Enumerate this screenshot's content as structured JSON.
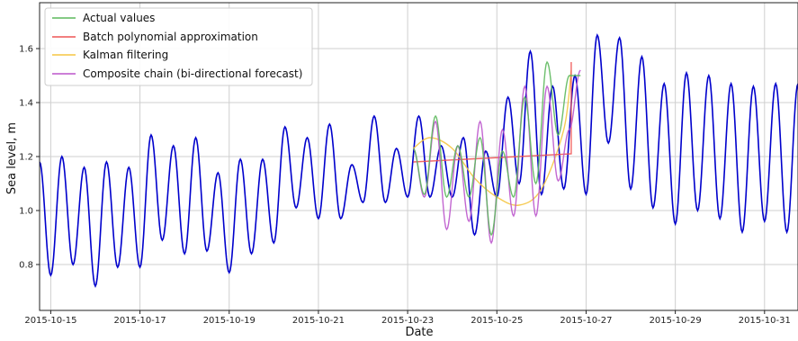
{
  "chart_data": {
    "type": "line",
    "xlabel": "Date",
    "ylabel": "Sea level, m",
    "xlim": [
      "2015-10-14T18:00",
      "2015-10-31T18:00"
    ],
    "ylim": [
      0.63,
      1.77
    ],
    "grid": true,
    "legend_position": "top-left",
    "x_ticks": [
      "2015-10-15",
      "2015-10-17",
      "2015-10-19",
      "2015-10-21",
      "2015-10-23",
      "2015-10-25",
      "2015-10-27",
      "2015-10-29",
      "2015-10-31"
    ],
    "y_ticks": [
      "0.8",
      "1.0",
      "1.2",
      "1.4",
      "1.6"
    ],
    "background_series": {
      "color": "#0000cc",
      "x": [
        "2015-10-14T18:00",
        "2015-10-15T00:00",
        "2015-10-15T06:00",
        "2015-10-15T12:00",
        "2015-10-15T18:00",
        "2015-10-16T00:00",
        "2015-10-16T06:00",
        "2015-10-16T12:00",
        "2015-10-16T18:00",
        "2015-10-17T00:00",
        "2015-10-17T06:00",
        "2015-10-17T12:00",
        "2015-10-17T18:00",
        "2015-10-18T00:00",
        "2015-10-18T06:00",
        "2015-10-18T12:00",
        "2015-10-18T18:00",
        "2015-10-19T00:00",
        "2015-10-19T06:00",
        "2015-10-19T12:00",
        "2015-10-19T18:00",
        "2015-10-20T00:00",
        "2015-10-20T06:00",
        "2015-10-20T12:00",
        "2015-10-20T18:00",
        "2015-10-21T00:00",
        "2015-10-21T06:00",
        "2015-10-21T12:00",
        "2015-10-21T18:00",
        "2015-10-22T00:00",
        "2015-10-22T06:00",
        "2015-10-22T12:00",
        "2015-10-22T18:00",
        "2015-10-23T00:00",
        "2015-10-23T06:00",
        "2015-10-23T12:00",
        "2015-10-23T18:00",
        "2015-10-24T00:00",
        "2015-10-24T06:00",
        "2015-10-24T12:00",
        "2015-10-24T18:00",
        "2015-10-25T00:00",
        "2015-10-25T06:00",
        "2015-10-25T12:00",
        "2015-10-25T18:00",
        "2015-10-26T00:00",
        "2015-10-26T06:00",
        "2015-10-26T12:00",
        "2015-10-26T18:00",
        "2015-10-27T00:00",
        "2015-10-27T06:00",
        "2015-10-27T12:00",
        "2015-10-27T18:00",
        "2015-10-28T00:00",
        "2015-10-28T06:00",
        "2015-10-28T12:00",
        "2015-10-28T18:00",
        "2015-10-29T00:00",
        "2015-10-29T06:00",
        "2015-10-29T12:00",
        "2015-10-29T18:00",
        "2015-10-30T00:00",
        "2015-10-30T06:00",
        "2015-10-30T12:00",
        "2015-10-30T18:00",
        "2015-10-31T00:00",
        "2015-10-31T06:00",
        "2015-10-31T12:00",
        "2015-10-31T18:00"
      ],
      "y": [
        1.18,
        0.76,
        1.2,
        0.8,
        1.16,
        0.72,
        1.18,
        0.79,
        1.16,
        0.79,
        1.28,
        0.89,
        1.24,
        0.84,
        1.27,
        0.85,
        1.14,
        0.77,
        1.19,
        0.84,
        1.19,
        0.88,
        1.31,
        1.01,
        1.27,
        0.97,
        1.32,
        0.97,
        1.17,
        1.03,
        1.35,
        1.03,
        1.23,
        1.05,
        1.35,
        1.05,
        1.24,
        1.05,
        1.27,
        0.91,
        1.22,
        1.05,
        1.42,
        1.1,
        1.59,
        1.06,
        1.46,
        1.08,
        1.5,
        1.06,
        1.65,
        1.25,
        1.64,
        1.08,
        1.57,
        1.01,
        1.47,
        0.95,
        1.51,
        1.0,
        1.5,
        0.97,
        1.47,
        0.92,
        1.46,
        0.96,
        1.47,
        0.92,
        1.47
      ]
    },
    "series": [
      {
        "name": "Actual values",
        "color": "#5cb85c",
        "x": [
          "2015-10-23T03:00",
          "2015-10-23T09:00",
          "2015-10-23T15:00",
          "2015-10-23T21:00",
          "2015-10-24T03:00",
          "2015-10-24T09:00",
          "2015-10-24T15:00",
          "2015-10-24T21:00",
          "2015-10-25T03:00",
          "2015-10-25T09:00",
          "2015-10-25T15:00",
          "2015-10-25T21:00",
          "2015-10-26T03:00",
          "2015-10-26T09:00",
          "2015-10-26T15:00",
          "2015-10-26T21:00"
        ],
        "y": [
          1.23,
          1.06,
          1.35,
          1.05,
          1.24,
          1.05,
          1.27,
          0.91,
          1.22,
          1.05,
          1.42,
          1.1,
          1.55,
          1.28,
          1.5,
          1.5
        ]
      },
      {
        "name": "Batch polynomial approximation",
        "color": "#ee5555",
        "x": [
          "2015-10-23T03:00",
          "2015-10-26T16:00",
          "2015-10-26T16:00"
        ],
        "y": [
          1.18,
          1.21,
          1.55
        ]
      },
      {
        "name": "Kalman filtering",
        "color": "#f5c542",
        "x": [
          "2015-10-23T03:00",
          "2015-10-23T12:00",
          "2015-10-24T00:00",
          "2015-10-24T12:00",
          "2015-10-25T00:00",
          "2015-10-25T12:00",
          "2015-10-26T00:00",
          "2015-10-26T12:00",
          "2015-10-26T16:00"
        ],
        "y": [
          1.23,
          1.27,
          1.23,
          1.12,
          1.05,
          1.02,
          1.08,
          1.3,
          1.52
        ]
      },
      {
        "name": "Composite chain (bi-directional forecast)",
        "color": "#bb55cc",
        "x": [
          "2015-10-23T03:00",
          "2015-10-23T09:00",
          "2015-10-23T15:00",
          "2015-10-23T21:00",
          "2015-10-24T03:00",
          "2015-10-24T09:00",
          "2015-10-24T15:00",
          "2015-10-24T21:00",
          "2015-10-25T03:00",
          "2015-10-25T09:00",
          "2015-10-25T15:00",
          "2015-10-25T21:00",
          "2015-10-26T03:00",
          "2015-10-26T09:00",
          "2015-10-26T15:00",
          "2015-10-26T21:00"
        ],
        "y": [
          1.23,
          1.05,
          1.33,
          0.93,
          1.24,
          0.96,
          1.33,
          0.88,
          1.3,
          0.98,
          1.46,
          0.98,
          1.46,
          1.11,
          1.3,
          1.52
        ]
      }
    ]
  }
}
